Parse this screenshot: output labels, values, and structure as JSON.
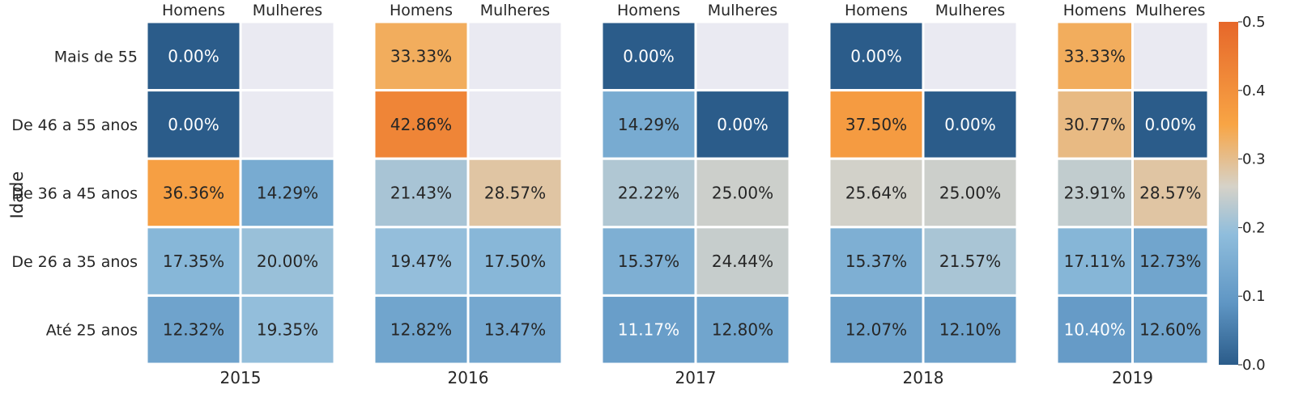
{
  "chart_data": {
    "type": "heatmap",
    "ylabel": "Idade",
    "rows": [
      "Mais de 55",
      "De 46 a 55 anos",
      "De 36 a 45 anos",
      "De 26 a 35 anos",
      "Até 25 anos"
    ],
    "columns": [
      "Homens",
      "Mulheres"
    ],
    "panels": [
      {
        "xlabel": "2015",
        "values": [
          [
            0.0,
            null
          ],
          [
            0.0,
            null
          ],
          [
            0.3636,
            0.1429
          ],
          [
            0.1735,
            0.2
          ],
          [
            0.1232,
            0.1935
          ]
        ],
        "labels": [
          [
            "0.00%",
            ""
          ],
          [
            "0.00%",
            ""
          ],
          [
            "36.36%",
            "14.29%"
          ],
          [
            "17.35%",
            "20.00%"
          ],
          [
            "12.32%",
            "19.35%"
          ]
        ]
      },
      {
        "xlabel": "2016",
        "values": [
          [
            0.3333,
            null
          ],
          [
            0.4286,
            null
          ],
          [
            0.2143,
            0.2857
          ],
          [
            0.1947,
            0.175
          ],
          [
            0.1282,
            0.1347
          ]
        ],
        "labels": [
          [
            "33.33%",
            ""
          ],
          [
            "42.86%",
            ""
          ],
          [
            "21.43%",
            "28.57%"
          ],
          [
            "19.47%",
            "17.50%"
          ],
          [
            "12.82%",
            "13.47%"
          ]
        ]
      },
      {
        "xlabel": "2017",
        "values": [
          [
            0.0,
            null
          ],
          [
            0.1429,
            0.0
          ],
          [
            0.2222,
            0.25
          ],
          [
            0.1537,
            0.2444
          ],
          [
            0.1117,
            0.128
          ]
        ],
        "labels": [
          [
            "0.00%",
            ""
          ],
          [
            "14.29%",
            "0.00%"
          ],
          [
            "22.22%",
            "25.00%"
          ],
          [
            "15.37%",
            "24.44%"
          ],
          [
            "11.17%",
            "12.80%"
          ]
        ]
      },
      {
        "xlabel": "2018",
        "values": [
          [
            0.0,
            null
          ],
          [
            0.375,
            0.0
          ],
          [
            0.2564,
            0.25
          ],
          [
            0.1537,
            0.2157
          ],
          [
            0.1207,
            0.121
          ]
        ],
        "labels": [
          [
            "0.00%",
            ""
          ],
          [
            "37.50%",
            "0.00%"
          ],
          [
            "25.64%",
            "25.00%"
          ],
          [
            "15.37%",
            "21.57%"
          ],
          [
            "12.07%",
            "12.10%"
          ]
        ]
      },
      {
        "xlabel": "2019",
        "values": [
          [
            0.3333,
            null
          ],
          [
            0.3077,
            0.0
          ],
          [
            0.2391,
            0.2857
          ],
          [
            0.1711,
            0.1273
          ],
          [
            0.104,
            0.126
          ]
        ],
        "labels": [
          [
            "33.33%",
            ""
          ],
          [
            "30.77%",
            "0.00%"
          ],
          [
            "23.91%",
            "28.57%"
          ],
          [
            "17.11%",
            "12.73%"
          ],
          [
            "10.40%",
            "12.60%"
          ]
        ]
      }
    ],
    "colorbar": {
      "range": [
        0,
        0.5
      ],
      "ticks": [
        "0.0",
        "0.1",
        "0.2",
        "0.3",
        "0.4",
        "0.5"
      ]
    },
    "colors": {
      "low": "#2b5c8a",
      "mid_low": "#8fbddc",
      "mid": "#d6d2c8",
      "mid_high": "#f8a545",
      "high": "#e6672a",
      "missing": "#eaeaf2"
    }
  }
}
